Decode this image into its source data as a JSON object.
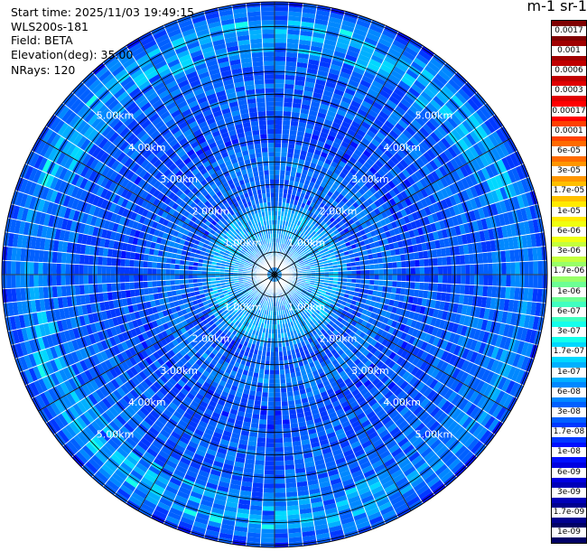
{
  "info": {
    "start_time": "Start time: 2025/11/03 19:49:15",
    "station": "WLS200s-181",
    "field": "Field: BETA",
    "elevation": "Elevation(deg): 35.00",
    "nrays": "NRays: 120"
  },
  "colorbar": {
    "unit_label": "m-1 sr-1",
    "labels": [
      "0.0017",
      "0.001",
      "0.0006",
      "0.0003",
      "0.00017",
      "0.0001",
      "6e-05",
      "3e-05",
      "1.7e-05",
      "1e-05",
      "6e-06",
      "3e-06",
      "1.7e-06",
      "1e-06",
      "6e-07",
      "3e-07",
      "1.7e-07",
      "1e-07",
      "6e-08",
      "3e-08",
      "1.7e-08",
      "1e-08",
      "6e-09",
      "3e-09",
      "1.7e-09",
      "1e-09"
    ],
    "colors": [
      "#7f0000",
      "#a00000",
      "#c00000",
      "#e00000",
      "#ff0000",
      "#ff4000",
      "#ff6a00",
      "#ff9500",
      "#ffbf00",
      "#ffea00",
      "#f0ff10",
      "#c4ff3c",
      "#98ff68",
      "#6cff94",
      "#40ffc0",
      "#14ffeb",
      "#00d8ff",
      "#00b0ff",
      "#0088ff",
      "#0060ff",
      "#0038ff",
      "#0010ff",
      "#0000e0",
      "#0000b8",
      "#00008f",
      "#000066"
    ]
  },
  "chart_data": {
    "type": "ppi",
    "title": "",
    "field": "BETA",
    "elevation_deg": 35.0,
    "n_rays": 120,
    "range_ring_labels": [
      "1.00km",
      "2.00km",
      "3.00km",
      "4.00km",
      "5.00km"
    ],
    "range_rings_km": [
      1,
      2,
      3,
      4,
      5
    ],
    "max_range_km": 6.05,
    "scale": "log",
    "value_range": [
      1e-09,
      0.0017
    ],
    "radial_profile_log10": [
      {
        "range_km": 0.0,
        "value": -7.2
      },
      {
        "range_km": 0.7,
        "value": -7.1
      },
      {
        "range_km": 1.4,
        "value": -7.0
      },
      {
        "range_km": 1.8,
        "value": -7.6
      },
      {
        "range_km": 2.4,
        "value": -7.3
      },
      {
        "range_km": 3.0,
        "value": -7.6
      },
      {
        "range_km": 4.0,
        "value": -7.5
      },
      {
        "range_km": 5.0,
        "value": -7.4
      },
      {
        "range_km": 5.6,
        "value": -7.2
      },
      {
        "range_km": 6.0,
        "value": -7.6
      }
    ]
  }
}
